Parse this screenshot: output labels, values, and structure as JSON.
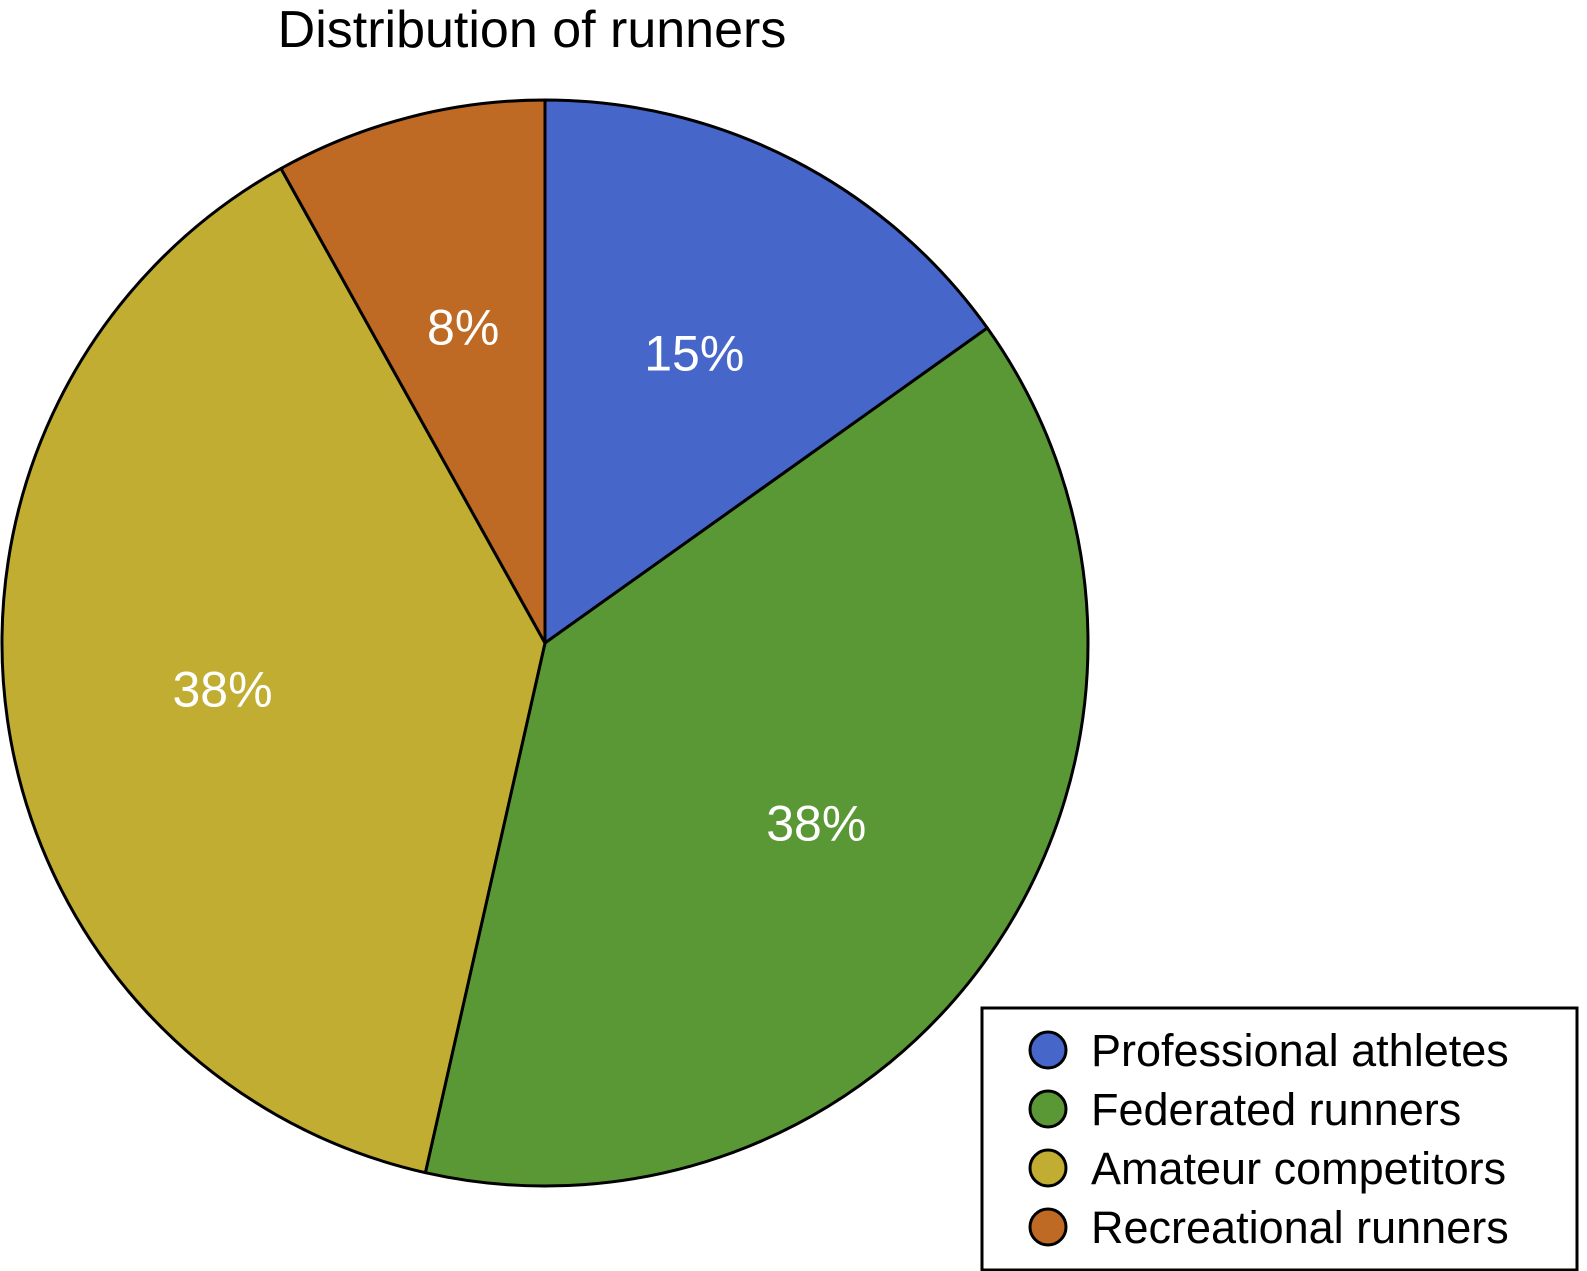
{
  "chart_data": {
    "type": "pie",
    "title": "Distribution of runners",
    "start_angle_deg": 0,
    "direction": "clockwise",
    "slices": [
      {
        "name": "Professional athletes",
        "value": 15,
        "label": "15%",
        "color": "#4667C9"
      },
      {
        "name": "Federated runners",
        "value": 38,
        "label": "38%",
        "color": "#5A9835"
      },
      {
        "name": "Amateur competitors",
        "value": 38,
        "label": "38%",
        "color": "#C1AD32"
      },
      {
        "name": "Recreational runners",
        "value": 8,
        "label": "8%",
        "color": "#BE6A24"
      }
    ],
    "legend_position": "bottom-right"
  }
}
